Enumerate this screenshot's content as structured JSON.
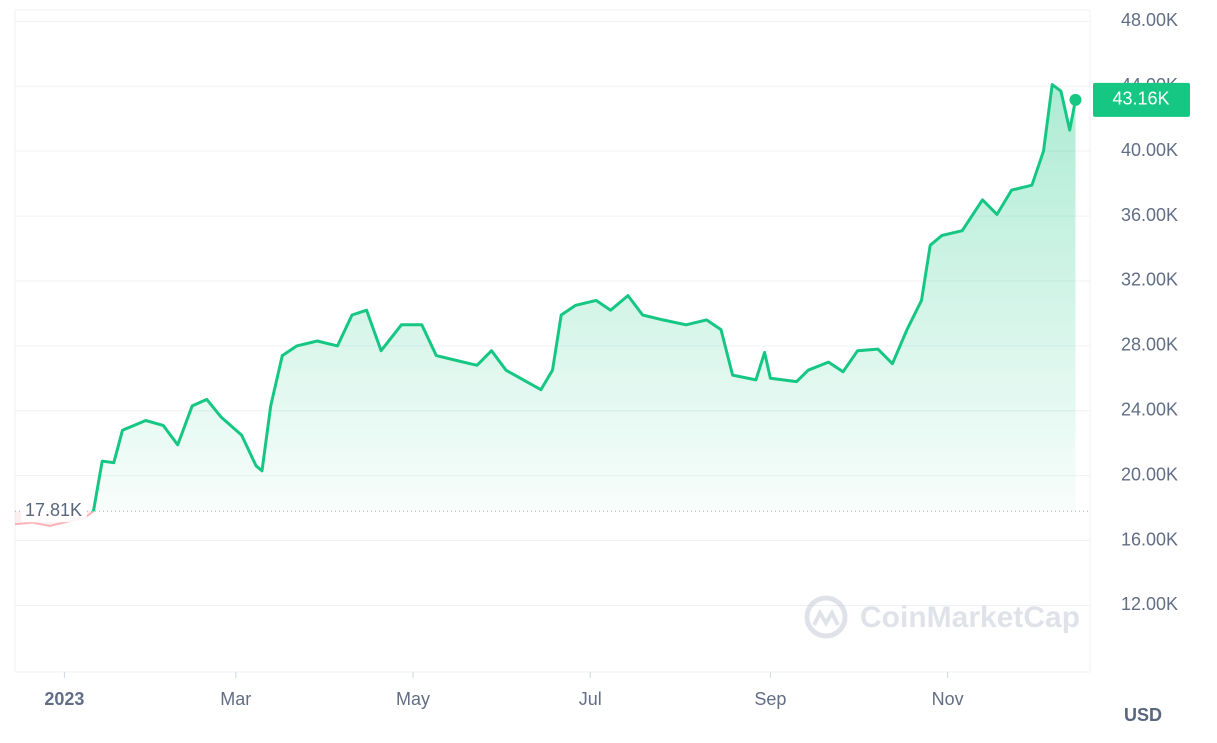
{
  "chart_data": {
    "type": "line",
    "x": [
      -16,
      -10,
      -4,
      3,
      8,
      11,
      14,
      18,
      21,
      29,
      35,
      40,
      45,
      50,
      55,
      62,
      67,
      69,
      72,
      76,
      81,
      88,
      95,
      100,
      105,
      110,
      117,
      124,
      129,
      136,
      143,
      148,
      153,
      158,
      165,
      169,
      172,
      177,
      184,
      189,
      195,
      200,
      207,
      215,
      222,
      227,
      231,
      239,
      242,
      244,
      253,
      257,
      264,
      269,
      274,
      281,
      286,
      291,
      296,
      299,
      303,
      310,
      317,
      322,
      327,
      334,
      338,
      341,
      344,
      347,
      349
    ],
    "series": [
      {
        "color": "#16c784",
        "below_color": "#ea3943",
        "values": [
          17000,
          17100,
          16900,
          17200,
          17400,
          17800,
          20900,
          20800,
          22800,
          23400,
          23100,
          21900,
          24300,
          24700,
          23600,
          22500,
          20600,
          20300,
          24300,
          27400,
          28000,
          28300,
          28000,
          29900,
          30200,
          27700,
          29300,
          29300,
          27400,
          27100,
          26800,
          27700,
          26500,
          26000,
          25300,
          26500,
          29900,
          30500,
          30800,
          30200,
          31100,
          29900,
          29600,
          29300,
          29600,
          29000,
          26200,
          25900,
          27600,
          26000,
          25800,
          26500,
          27000,
          26400,
          27700,
          27800,
          26900,
          29000,
          30800,
          34200,
          34800,
          35100,
          37000,
          36100,
          37600,
          37900,
          40000,
          44100,
          43700,
          41300,
          43160
        ],
        "value_labels": [
          null,
          null,
          null,
          null,
          null,
          null,
          null,
          null,
          null,
          null,
          null,
          null,
          null,
          null,
          null,
          null,
          null,
          null,
          null,
          null,
          null,
          null,
          null,
          null,
          null,
          null,
          null,
          null,
          null,
          null,
          null,
          null,
          null,
          null,
          null,
          null,
          null,
          null,
          null,
          null,
          null,
          null,
          null,
          null,
          null,
          null,
          null,
          null,
          null,
          null,
          null,
          null,
          null,
          null,
          null,
          null,
          null,
          null,
          null,
          null,
          null,
          null,
          null,
          null,
          null,
          null,
          null,
          null,
          null,
          null,
          "43.16K"
        ]
      }
    ],
    "reference": {
      "value": 17810,
      "label": "17.81K"
    },
    "xlim": [
      -16,
      354
    ],
    "xticks": [
      {
        "value": 1,
        "label": "2023"
      },
      {
        "value": 60,
        "label": "Mar"
      },
      {
        "value": 121,
        "label": "May"
      },
      {
        "value": 182,
        "label": "Jul"
      },
      {
        "value": 244,
        "label": "Sep"
      },
      {
        "value": 305,
        "label": "Nov"
      }
    ],
    "ylim": [
      7900,
      48700
    ],
    "yticks": [
      {
        "value": 12000,
        "label": "12.00K"
      },
      {
        "value": 16000,
        "label": "16.00K"
      },
      {
        "value": 20000,
        "label": "20.00K"
      },
      {
        "value": 24000,
        "label": "24.00K"
      },
      {
        "value": 28000,
        "label": "28.00K"
      },
      {
        "value": 32000,
        "label": "32.00K"
      },
      {
        "value": 36000,
        "label": "36.00K"
      },
      {
        "value": 40000,
        "label": "40.00K"
      },
      {
        "value": 44000,
        "label": "44.00K"
      },
      {
        "value": 48000,
        "label": "48.00K"
      }
    ],
    "grid": true,
    "currency": "USD",
    "watermark": "CoinMarketCap"
  }
}
